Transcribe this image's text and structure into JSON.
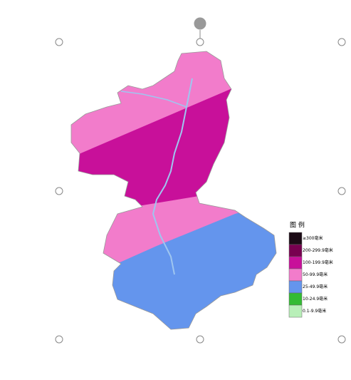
{
  "legend": {
    "title": "图 例",
    "items": [
      {
        "label": "≥300毫米",
        "color": "#1c0b16"
      },
      {
        "label": "200-299.9毫米",
        "color": "#780050"
      },
      {
        "label": "100-199.9毫米",
        "color": "#c8109a"
      },
      {
        "label": "50-99.9毫米",
        "color": "#f27ccb"
      },
      {
        "label": "25-49.9毫米",
        "color": "#6495ed"
      },
      {
        "label": "10-24.9毫米",
        "color": "#33bb33"
      },
      {
        "label": "0.1-9.9毫米",
        "color": "#b8efb8"
      }
    ]
  }
}
